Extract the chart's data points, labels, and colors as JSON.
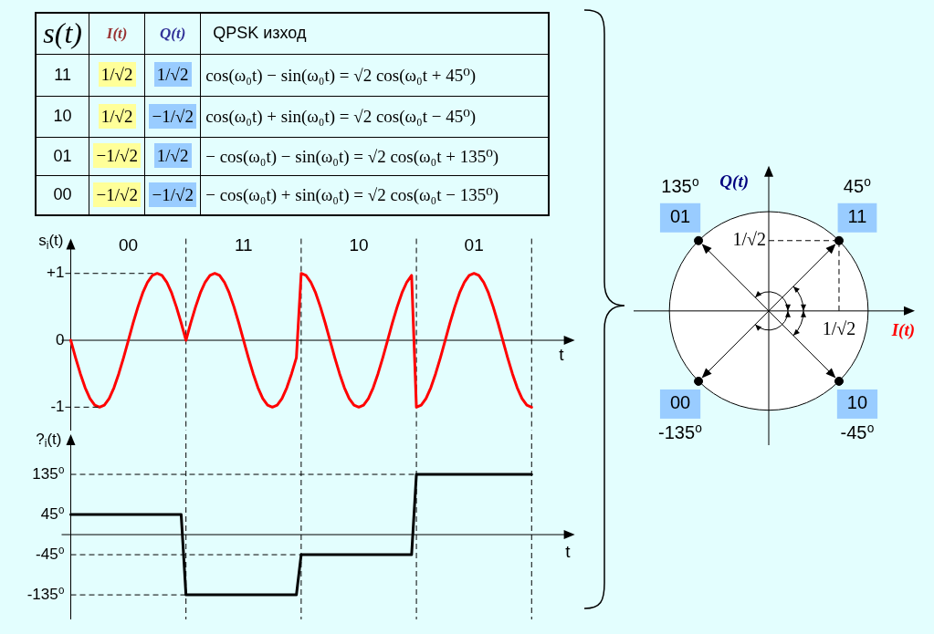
{
  "chart_data": [
    {
      "type": "other",
      "categories": [
        "s(t)",
        "I(t)",
        "Q(t)",
        "QPSK изход"
      ],
      "cell_labels": [
        [
          "11",
          "1/√2",
          "1/√2",
          "cos(ω₀t) − sin(ω₀t) = √2 cos(ω₀t + 45⁰)"
        ],
        [
          "10",
          "1/√2",
          "−1/√2",
          "cos(ω₀t) + sin(ω₀t) = √2 cos(ω₀t − 45⁰)"
        ],
        [
          "01",
          "−1/√2",
          "1/√2",
          "− cos(ω₀t) − sin(ω₀t) = √2 cos(ω₀t + 135⁰)"
        ],
        [
          "00",
          "−1/√2",
          "−1/√2",
          "− cos(ω₀t) + sin(ω₀t) = √2 cos(ω₀t − 135⁰)"
        ]
      ]
    },
    {
      "type": "line",
      "ylabel": "s$_{i}$(t)",
      "xlabel": "t",
      "marker": "none",
      "grid": "x",
      "categories": [
        null,
        null,
        null,
        null,
        null,
        null,
        null,
        null,
        null,
        null,
        null,
        null,
        "00",
        null,
        null,
        null,
        null,
        null,
        null,
        null,
        null,
        null,
        null,
        null,
        null,
        null,
        null,
        null,
        null,
        null,
        null,
        null,
        null,
        null,
        null,
        null,
        "11",
        null,
        null,
        null,
        null,
        null,
        null,
        null,
        null,
        null,
        null,
        null,
        null,
        null,
        null,
        null,
        null,
        null,
        null,
        null,
        null,
        null,
        null,
        null,
        "10",
        null,
        null,
        null,
        null,
        null,
        null,
        null,
        null,
        null,
        null,
        null,
        null,
        null,
        null,
        null,
        null,
        null,
        null,
        null,
        null,
        null,
        null,
        null,
        "01",
        null,
        null,
        null,
        null,
        null,
        null,
        null,
        null,
        null,
        null,
        null,
        null,
        null,
        null,
        null,
        null,
        null,
        null,
        null,
        null,
        null
      ],
      "series": [
        {
          "color": "#ff0000",
          "values": [
            0,
            -0.26,
            -0.5,
            -0.71,
            -0.87,
            -0.97,
            -1,
            -0.97,
            -0.87,
            -0.71,
            -0.5,
            -0.26,
            0,
            0.26,
            0.5,
            0.71,
            0.87,
            0.97,
            1,
            0.97,
            0.87,
            0.71,
            0.5,
            0.26,
            0,
            0.26,
            0.5,
            0.71,
            0.87,
            0.97,
            1,
            0.97,
            0.87,
            0.71,
            0.5,
            0.26,
            0,
            -0.26,
            -0.5,
            -0.71,
            -0.87,
            -0.97,
            -1,
            -0.97,
            -0.87,
            -0.71,
            -0.5,
            -0.26,
            1,
            0.97,
            0.87,
            0.71,
            0.5,
            0.26,
            0,
            -0.26,
            -0.5,
            -0.71,
            -0.87,
            -0.97,
            -1,
            -0.97,
            -0.87,
            -0.71,
            -0.5,
            -0.26,
            0,
            0.26,
            0.5,
            0.71,
            0.87,
            0.97,
            -1,
            -0.97,
            -0.87,
            -0.71,
            -0.5,
            -0.26,
            0,
            0.26,
            0.5,
            0.71,
            0.87,
            0.97,
            1,
            0.97,
            0.87,
            0.71,
            0.5,
            0.26,
            0,
            -0.26,
            -0.5,
            -0.71,
            -0.87,
            -0.97,
            -1,
            null,
            null,
            null,
            null,
            null,
            null,
            null,
            null,
            null
          ]
        }
      ],
      "ylim": [
        -1.35,
        1.52
      ],
      "yticks": [
        {
          "value": 1,
          "label": "+1"
        },
        0,
        -1
      ],
      "ref_lines": [
        {
          "axis": "y",
          "value": 1,
          "color": "#000000",
          "line_style": "dashed"
        }
      ]
    },
    {
      "type": "line",
      "ylabel": "?$_{i}$(t)",
      "xlabel": "t",
      "marker": "none",
      "grid": "x",
      "categories": [
        null,
        null,
        null,
        null,
        null,
        null,
        null,
        null,
        null,
        null,
        null,
        null,
        null,
        null,
        null,
        null,
        null,
        null,
        null,
        null,
        null,
        null,
        null,
        null,
        null,
        null,
        null,
        null,
        null,
        null,
        null,
        null,
        null,
        null,
        null,
        null,
        null,
        null,
        null,
        null,
        null,
        null,
        null,
        null,
        null,
        null,
        null,
        null,
        null,
        null,
        null,
        null,
        null,
        null,
        null,
        null,
        null,
        null,
        null,
        null,
        null,
        null,
        null,
        null,
        null,
        null,
        null,
        null,
        null,
        null,
        null,
        null,
        null,
        null,
        null,
        null,
        null,
        null,
        null,
        null,
        null,
        null,
        null,
        null,
        null,
        null,
        null,
        null,
        null,
        null,
        null,
        null,
        null,
        null,
        null,
        null,
        null,
        null,
        null,
        null,
        null,
        null,
        null,
        null,
        null,
        null
      ],
      "series": [
        {
          "color": "#000000",
          "values": [
            45,
            45,
            45,
            45,
            45,
            45,
            45,
            45,
            45,
            45,
            45,
            45,
            45,
            45,
            45,
            45,
            45,
            45,
            45,
            45,
            45,
            45,
            45,
            45,
            -135,
            -135,
            -135,
            -135,
            -135,
            -135,
            -135,
            -135,
            -135,
            -135,
            -135,
            -135,
            -135,
            -135,
            -135,
            -135,
            -135,
            -135,
            -135,
            -135,
            -135,
            -135,
            -135,
            -135,
            -45,
            -45,
            -45,
            -45,
            -45,
            -45,
            -45,
            -45,
            -45,
            -45,
            -45,
            -45,
            -45,
            -45,
            -45,
            -45,
            -45,
            -45,
            -45,
            -45,
            -45,
            -45,
            -45,
            -45,
            135,
            135,
            135,
            135,
            135,
            135,
            135,
            135,
            135,
            135,
            135,
            135,
            135,
            135,
            135,
            135,
            135,
            135,
            135,
            135,
            135,
            135,
            135,
            135,
            135,
            null,
            null,
            null,
            null,
            null,
            null,
            null,
            null,
            null
          ]
        }
      ],
      "ylim": [
        -190,
        225
      ],
      "yticks": [
        {
          "value": 135,
          "label": "135⁰"
        },
        {
          "value": 45,
          "label": "45⁰"
        },
        {
          "value": -45,
          "label": "-45⁰"
        },
        {
          "value": -135,
          "label": "-135⁰"
        }
      ],
      "ref_lines": [
        {
          "axis": "y",
          "value": 135,
          "color": "#000000",
          "line_style": "dashed"
        },
        {
          "axis": "y",
          "value": -45,
          "color": "#000000",
          "line_style": "dashed"
        },
        {
          "axis": "y",
          "value": -135,
          "color": "#000000",
          "line_style": "dashed"
        }
      ]
    },
    {
      "type": "other",
      "xlabel": "I(t)",
      "ylabel": "Q(t)",
      "color": "#000000",
      "categories": [
        "11",
        "10",
        "01",
        "00"
      ],
      "values": [
        45,
        -45,
        135,
        -135
      ],
      "value_labels": [
        "45⁰",
        "-45⁰",
        "135⁰",
        "-135⁰"
      ],
      "annotations": [
        "1/√2",
        "1/√2"
      ]
    }
  ]
}
